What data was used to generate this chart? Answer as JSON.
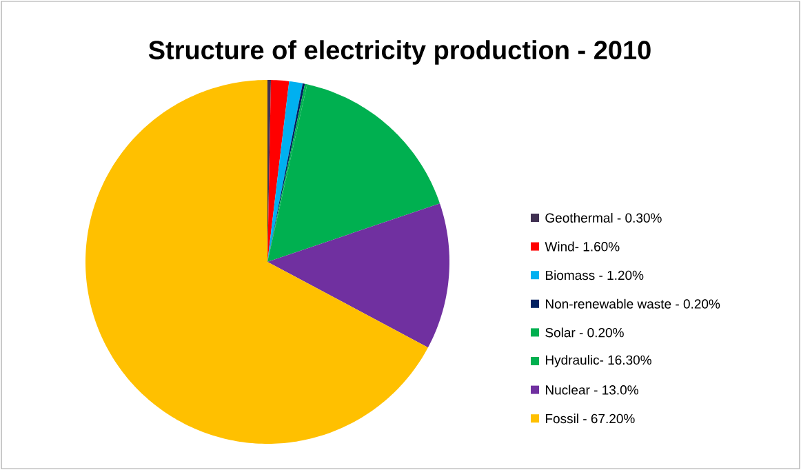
{
  "chart_data": {
    "type": "pie",
    "title": "Structure of electricity production - 2010",
    "categories": [
      "Geothermal - 0.30%",
      "Wind- 1.60%",
      "Biomass - 1.20%",
      "Non-renewable waste - 0.20%",
      "Solar - 0.20%",
      "Hydraulic- 16.30%",
      "Nuclear - 13.0%",
      "Fossil - 67.20%"
    ],
    "values": [
      0.3,
      1.6,
      1.2,
      0.2,
      0.2,
      16.3,
      13.0,
      67.2
    ],
    "colors": [
      "#403152",
      "#ff0000",
      "#00b0f0",
      "#002060",
      "#00b050",
      "#00b050",
      "#7030a0",
      "#ffc000"
    ],
    "legend": "right"
  }
}
